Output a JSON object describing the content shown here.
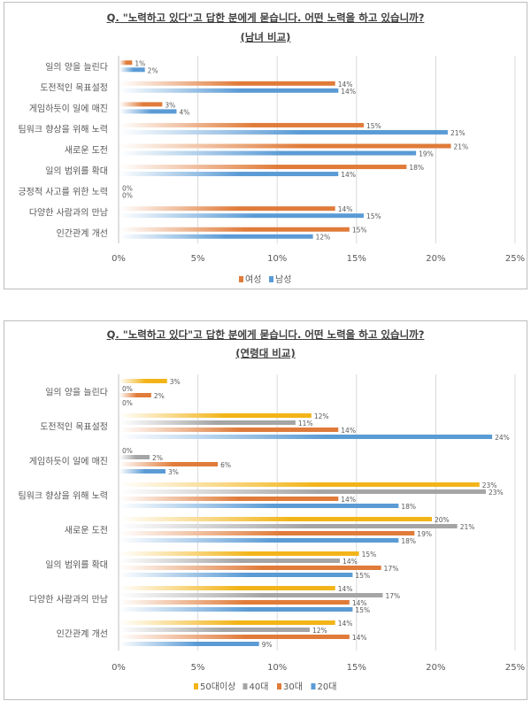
{
  "chart_data": [
    {
      "type": "bar",
      "orientation": "horizontal",
      "title": "Q. \"노력하고 있다\"고 답한 분에게 묻습니다. 어떤 노력을 하고 있습니까?",
      "subtitle": "(남녀 비교)",
      "categories": [
        "일의 양을 늘린다",
        "도전적인 목표설정",
        "게임하듯이 일에 매진",
        "팀워크 향상을 위해 노력",
        "새로운 도전",
        "일의 범위를 확대",
        "긍정적 사고를 위한 노력",
        "다양한 사람과의 만남",
        "인간관계 개선"
      ],
      "series": [
        {
          "name": "여성",
          "color": "#E07B39",
          "values": [
            0.8,
            13.6,
            2.7,
            15.4,
            20.9,
            18.1,
            0,
            13.6,
            14.5
          ],
          "labels": [
            "1%",
            "14%",
            "3%",
            "15%",
            "21%",
            "18%",
            "0%",
            "14%",
            "15%"
          ]
        },
        {
          "name": "남성",
          "color": "#5B9BD5",
          "values": [
            1.6,
            13.8,
            3.6,
            20.7,
            18.7,
            13.8,
            0,
            15.4,
            12.2
          ],
          "labels": [
            "2%",
            "14%",
            "4%",
            "21%",
            "19%",
            "14%",
            "0%",
            "15%",
            "12%"
          ]
        }
      ],
      "xlim": [
        0,
        25
      ],
      "xticks": [
        "0%",
        "5%",
        "10%",
        "15%",
        "20%",
        "25%"
      ],
      "grid": true,
      "legend": "bottom"
    },
    {
      "type": "bar",
      "orientation": "horizontal",
      "title": "Q. \"노력하고 있다\"고 답한 분에게 묻습니다. 어떤 노력을 하고 있습니까?",
      "subtitle": "(연령대 비교)",
      "categories": [
        "일의 양을 늘린다",
        "도전적인 목표설정",
        "게임하듯이 일에 매진",
        "팀워크 향상을 위해 노력",
        "새로운 도전",
        "일의 범위를 확대",
        "다양한 사람과의 만남",
        "인간관계 개선"
      ],
      "series": [
        {
          "name": "50대이상",
          "color": "#F2B418",
          "values": [
            3.0,
            12.1,
            0,
            22.7,
            19.7,
            15.1,
            13.6,
            13.6
          ],
          "labels": [
            "3%",
            "12%",
            "0%",
            "23%",
            "20%",
            "15%",
            "14%",
            "14%"
          ]
        },
        {
          "name": "40대",
          "color": "#A5A5A5",
          "values": [
            0,
            11.1,
            1.9,
            23.1,
            21.3,
            13.9,
            16.6,
            12.0
          ],
          "labels": [
            "0%",
            "11%",
            "2%",
            "23%",
            "21%",
            "14%",
            "17%",
            "12%"
          ]
        },
        {
          "name": "30대",
          "color": "#E07B39",
          "values": [
            2.0,
            13.8,
            6.2,
            13.8,
            18.6,
            16.5,
            14.5,
            14.5
          ],
          "labels": [
            "2%",
            "14%",
            "6%",
            "14%",
            "19%",
            "17%",
            "14%",
            "14%"
          ]
        },
        {
          "name": "20대",
          "color": "#5B9BD5",
          "values": [
            0,
            23.5,
            2.9,
            17.6,
            17.6,
            14.7,
            14.7,
            8.8
          ],
          "labels": [
            "0%",
            "24%",
            "3%",
            "18%",
            "18%",
            "15%",
            "15%",
            "9%"
          ]
        }
      ],
      "xlim": [
        0,
        25
      ],
      "xticks": [
        "0%",
        "5%",
        "10%",
        "15%",
        "20%",
        "25%"
      ],
      "grid": true,
      "legend": "bottom"
    }
  ]
}
